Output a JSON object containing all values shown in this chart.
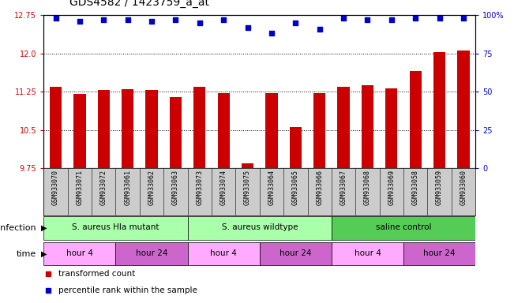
{
  "title": "GDS4582 / 1423759_a_at",
  "samples": [
    "GSM933070",
    "GSM933071",
    "GSM933072",
    "GSM933061",
    "GSM933062",
    "GSM933063",
    "GSM933073",
    "GSM933074",
    "GSM933075",
    "GSM933064",
    "GSM933065",
    "GSM933066",
    "GSM933067",
    "GSM933068",
    "GSM933069",
    "GSM933058",
    "GSM933059",
    "GSM933060"
  ],
  "bar_values": [
    11.35,
    11.2,
    11.28,
    11.3,
    11.28,
    11.15,
    11.35,
    11.22,
    9.85,
    11.22,
    10.55,
    11.22,
    11.35,
    11.37,
    11.32,
    11.65,
    12.02,
    12.05
  ],
  "percentile_values": [
    98,
    96,
    97,
    97,
    96,
    97,
    95,
    97,
    92,
    88,
    95,
    91,
    98,
    97,
    97,
    98,
    98,
    98
  ],
  "ylim_left": [
    9.75,
    12.75
  ],
  "ylim_right": [
    0,
    100
  ],
  "yticks_left": [
    9.75,
    10.5,
    11.25,
    12.0,
    12.75
  ],
  "yticks_right": [
    0,
    25,
    50,
    75,
    100
  ],
  "bar_color": "#cc0000",
  "dot_color": "#0000cc",
  "bar_width": 0.5,
  "groups": [
    {
      "label": "S. aureus Hla mutant",
      "start": 0,
      "end": 6,
      "color": "#aaffaa"
    },
    {
      "label": "S. aureus wildtype",
      "start": 6,
      "end": 12,
      "color": "#aaffaa"
    },
    {
      "label": "saline control",
      "start": 12,
      "end": 18,
      "color": "#55cc55"
    }
  ],
  "time_groups": [
    {
      "label": "hour 4",
      "start": 0,
      "end": 3,
      "color": "#ffaaff"
    },
    {
      "label": "hour 24",
      "start": 3,
      "end": 6,
      "color": "#cc66cc"
    },
    {
      "label": "hour 4",
      "start": 6,
      "end": 9,
      "color": "#ffaaff"
    },
    {
      "label": "hour 24",
      "start": 9,
      "end": 12,
      "color": "#cc66cc"
    },
    {
      "label": "hour 4",
      "start": 12,
      "end": 15,
      "color": "#ffaaff"
    },
    {
      "label": "hour 24",
      "start": 15,
      "end": 18,
      "color": "#cc66cc"
    }
  ],
  "legend_items": [
    {
      "label": "transformed count",
      "color": "#cc0000"
    },
    {
      "label": "percentile rank within the sample",
      "color": "#0000cc"
    }
  ],
  "infection_label": "infection",
  "time_label": "time",
  "title_fontsize": 10,
  "tick_fontsize": 7,
  "label_fontsize": 8,
  "sample_fontsize": 6
}
